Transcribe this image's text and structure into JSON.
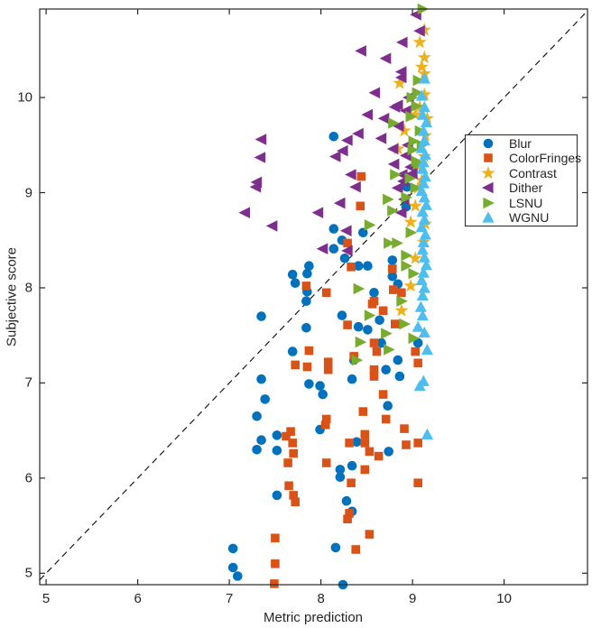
{
  "chart_data": {
    "type": "scatter",
    "title": "",
    "xlabel": "Metric prediction",
    "ylabel": "Subjective score",
    "xlim": [
      4.93,
      10.91
    ],
    "ylim": [
      4.88,
      10.93
    ],
    "xticks": [
      "5",
      "6",
      "7",
      "8",
      "9",
      "10"
    ],
    "xtick_values": [
      5,
      6,
      7,
      8,
      9,
      10
    ],
    "yticks": [
      "5",
      "6",
      "7",
      "8",
      "9",
      "10"
    ],
    "ytick_values": [
      5,
      6,
      7,
      8,
      9,
      10
    ],
    "grid": false,
    "box": true,
    "axis_color": "#262626",
    "legend_position": "upper-right-inside",
    "reference_line": {
      "description": "identity line y = x",
      "style": "dashed",
      "color": "#1a1a1a",
      "from": [
        4.93,
        4.93
      ],
      "to": [
        10.91,
        10.91
      ]
    },
    "series": [
      {
        "name": "Blur",
        "marker": "circle",
        "color": "#0072BD",
        "points": [
          [
            8.14,
            9.59
          ],
          [
            8.94,
            9.06
          ],
          [
            8.93,
            8.85
          ],
          [
            8.46,
            8.58
          ],
          [
            8.23,
            8.5
          ],
          [
            8.26,
            8.31
          ],
          [
            8.41,
            8.23
          ],
          [
            8.51,
            8.23
          ],
          [
            8.78,
            8.29
          ],
          [
            8.84,
            8.04
          ],
          [
            8.58,
            7.95
          ],
          [
            8.78,
            8.12
          ],
          [
            8.14,
            8.62
          ],
          [
            8.14,
            8.41
          ],
          [
            7.87,
            8.23
          ],
          [
            7.85,
            8.15
          ],
          [
            7.69,
            8.14
          ],
          [
            7.72,
            8.05
          ],
          [
            7.85,
            7.96
          ],
          [
            7.84,
            7.86
          ],
          [
            7.35,
            7.7
          ],
          [
            7.84,
            7.58
          ],
          [
            7.69,
            7.33
          ],
          [
            7.35,
            7.04
          ],
          [
            7.87,
            6.99
          ],
          [
            7.99,
            6.97
          ],
          [
            8.02,
            6.88
          ],
          [
            7.39,
            6.83
          ],
          [
            7.3,
            6.65
          ],
          [
            8.23,
            7.71
          ],
          [
            8.41,
            7.59
          ],
          [
            8.51,
            7.56
          ],
          [
            8.64,
            7.66
          ],
          [
            8.66,
            7.42
          ],
          [
            8.36,
            7.24
          ],
          [
            8.84,
            7.24
          ],
          [
            8.71,
            7.14
          ],
          [
            8.86,
            7.07
          ],
          [
            8.34,
            7.04
          ],
          [
            8.73,
            6.76
          ],
          [
            9.06,
            7.42
          ],
          [
            7.35,
            6.4
          ],
          [
            7.3,
            6.3
          ],
          [
            7.52,
            6.45
          ],
          [
            7.52,
            6.29
          ],
          [
            7.99,
            6.51
          ],
          [
            7.52,
            5.82
          ],
          [
            8.39,
            6.38
          ],
          [
            8.74,
            6.28
          ],
          [
            8.21,
            6.09
          ],
          [
            8.34,
            6.13
          ],
          [
            8.21,
            6.01
          ],
          [
            8.28,
            5.76
          ],
          [
            8.34,
            5.65
          ],
          [
            7.04,
            5.26
          ],
          [
            7.04,
            5.06
          ],
          [
            7.09,
            4.97
          ],
          [
            8.16,
            5.27
          ],
          [
            8.24,
            4.88
          ]
        ]
      },
      {
        "name": "ColorFringes",
        "marker": "square",
        "color": "#D95319",
        "points": [
          [
            8.44,
            9.17
          ],
          [
            8.43,
            8.86
          ],
          [
            8.29,
            8.47
          ],
          [
            8.33,
            8.22
          ],
          [
            8.78,
            8.2
          ],
          [
            8.79,
            7.98
          ],
          [
            8.88,
            7.95
          ],
          [
            8.58,
            7.86
          ],
          [
            7.84,
            8.02
          ],
          [
            8.06,
            7.95
          ],
          [
            7.87,
            7.34
          ],
          [
            7.72,
            7.19
          ],
          [
            7.85,
            7.17
          ],
          [
            8.08,
            7.22
          ],
          [
            8.08,
            7.14
          ],
          [
            8.06,
            6.62
          ],
          [
            8.56,
            7.83
          ],
          [
            8.68,
            7.76
          ],
          [
            8.29,
            7.61
          ],
          [
            8.81,
            7.62
          ],
          [
            8.58,
            7.42
          ],
          [
            8.61,
            7.33
          ],
          [
            8.36,
            7.28
          ],
          [
            8.58,
            7.14
          ],
          [
            8.58,
            7.07
          ],
          [
            8.68,
            6.88
          ],
          [
            8.46,
            6.7
          ],
          [
            8.71,
            6.62
          ],
          [
            9.03,
            7.33
          ],
          [
            9.06,
            7.21
          ],
          [
            7.67,
            6.49
          ],
          [
            7.62,
            6.44
          ],
          [
            7.69,
            6.37
          ],
          [
            7.7,
            6.26
          ],
          [
            7.64,
            6.16
          ],
          [
            8.06,
            6.16
          ],
          [
            7.65,
            5.92
          ],
          [
            7.7,
            5.82
          ],
          [
            7.72,
            5.75
          ],
          [
            7.5,
            5.37
          ],
          [
            8.05,
            6.56
          ],
          [
            8.48,
            6.46
          ],
          [
            8.91,
            6.52
          ],
          [
            8.31,
            6.37
          ],
          [
            8.48,
            6.37
          ],
          [
            8.53,
            6.28
          ],
          [
            8.63,
            6.23
          ],
          [
            8.93,
            6.35
          ],
          [
            9.06,
            6.37
          ],
          [
            8.48,
            6.09
          ],
          [
            8.33,
            5.95
          ],
          [
            9.06,
            5.95
          ],
          [
            8.29,
            5.57
          ],
          [
            8.53,
            5.41
          ],
          [
            7.5,
            5.1
          ],
          [
            7.49,
            4.89
          ],
          [
            8.31,
            5.63
          ],
          [
            8.38,
            5.25
          ]
        ]
      },
      {
        "name": "Contrast",
        "marker": "pentagram",
        "color": "#EDB120",
        "points": [
          [
            9.13,
            10.71
          ],
          [
            9.08,
            10.58
          ],
          [
            9.13,
            10.42
          ],
          [
            8.86,
            10.15
          ],
          [
            9.13,
            10.25
          ],
          [
            9.13,
            10.03
          ],
          [
            9.03,
            9.82
          ],
          [
            9.16,
            9.78
          ],
          [
            8.91,
            9.65
          ],
          [
            8.84,
            9.46
          ],
          [
            9.13,
            9.38
          ],
          [
            9.08,
            9.9
          ],
          [
            9.14,
            9.6
          ],
          [
            9.05,
            9.28
          ],
          [
            9.1,
            9.13
          ],
          [
            9.03,
            8.86
          ],
          [
            8.98,
            8.69
          ],
          [
            9.14,
            8.67
          ],
          [
            9.03,
            8.31
          ],
          [
            8.98,
            8.02
          ],
          [
            8.88,
            7.76
          ],
          [
            9.1,
            10.32
          ],
          [
            9.06,
            9.05
          ],
          [
            9.12,
            8.48
          ]
        ]
      },
      {
        "name": "Dither",
        "marker": "triangle-left",
        "color": "#7E2F8E",
        "points": [
          [
            7.35,
            9.56
          ],
          [
            7.34,
            9.37
          ],
          [
            7.3,
            9.11
          ],
          [
            7.29,
            9.06
          ],
          [
            7.17,
            8.79
          ],
          [
            7.47,
            8.65
          ],
          [
            7.97,
            8.79
          ],
          [
            8.02,
            8.41
          ],
          [
            8.21,
            8.89
          ],
          [
            8.38,
            9.06
          ],
          [
            8.84,
            9.05
          ],
          [
            8.91,
            8.93
          ],
          [
            8.88,
            8.79
          ],
          [
            8.28,
            8.6
          ],
          [
            8.29,
            8.39
          ],
          [
            8.44,
            10.49
          ],
          [
            9.04,
            10.87
          ],
          [
            9.08,
            10.7
          ],
          [
            8.89,
            10.58
          ],
          [
            8.71,
            10.41
          ],
          [
            8.88,
            10.21
          ],
          [
            8.59,
            10.05
          ],
          [
            8.88,
            10.27
          ],
          [
            8.96,
            10.0
          ],
          [
            8.84,
            9.92
          ],
          [
            8.51,
            9.82
          ],
          [
            8.69,
            9.78
          ],
          [
            8.93,
            9.86
          ],
          [
            8.41,
            9.62
          ],
          [
            8.29,
            9.55
          ],
          [
            8.66,
            9.57
          ],
          [
            8.24,
            9.44
          ],
          [
            8.16,
            9.38
          ],
          [
            8.79,
            9.46
          ],
          [
            8.93,
            9.39
          ],
          [
            8.98,
            9.27
          ],
          [
            8.89,
            9.19
          ],
          [
            8.33,
            9.19
          ],
          [
            8.81,
            9.9
          ],
          [
            8.85,
            9.7
          ],
          [
            8.95,
            9.5
          ],
          [
            8.8,
            9.3
          ],
          [
            8.9,
            9.12
          ],
          [
            9.0,
            9.2
          ]
        ]
      },
      {
        "name": "LSNU",
        "marker": "triangle-right",
        "color": "#77AC30",
        "points": [
          [
            9.11,
            10.93
          ],
          [
            9.06,
            10.18
          ],
          [
            8.99,
            10.0
          ],
          [
            8.79,
            9.73
          ],
          [
            9.04,
            9.91
          ],
          [
            9.01,
            9.54
          ],
          [
            9.04,
            9.33
          ],
          [
            8.81,
            9.19
          ],
          [
            8.73,
            8.93
          ],
          [
            8.93,
            8.95
          ],
          [
            8.78,
            8.81
          ],
          [
            8.53,
            8.66
          ],
          [
            8.98,
            8.58
          ],
          [
            8.74,
            8.47
          ],
          [
            8.83,
            8.47
          ],
          [
            8.93,
            8.34
          ],
          [
            8.93,
            8.23
          ],
          [
            9.01,
            8.15
          ],
          [
            8.41,
            7.99
          ],
          [
            8.88,
            7.86
          ],
          [
            8.53,
            7.71
          ],
          [
            8.91,
            7.62
          ],
          [
            8.71,
            7.52
          ],
          [
            8.74,
            7.35
          ],
          [
            8.43,
            7.43
          ],
          [
            8.39,
            7.24
          ],
          [
            9.01,
            7.47
          ],
          [
            9.05,
            10.05
          ],
          [
            8.98,
            9.8
          ],
          [
            9.08,
            9.65
          ],
          [
            9.0,
            9.45
          ],
          [
            9.06,
            9.3
          ],
          [
            8.97,
            9.15
          ],
          [
            9.03,
            9.05
          ],
          [
            9.1,
            9.5
          ]
        ]
      },
      {
        "name": "WGNU",
        "marker": "triangle-up",
        "color": "#4DBEEE",
        "points": [
          [
            9.13,
            10.2
          ],
          [
            9.1,
            10.02
          ],
          [
            9.13,
            9.9
          ],
          [
            9.11,
            9.82
          ],
          [
            9.15,
            9.74
          ],
          [
            9.12,
            9.65
          ],
          [
            9.13,
            9.55
          ],
          [
            9.1,
            9.47
          ],
          [
            9.14,
            9.4
          ],
          [
            9.12,
            9.32
          ],
          [
            9.11,
            9.25
          ],
          [
            9.14,
            9.17
          ],
          [
            9.12,
            9.1
          ],
          [
            9.1,
            9.02
          ],
          [
            9.13,
            8.95
          ],
          [
            9.15,
            8.87
          ],
          [
            9.11,
            8.8
          ],
          [
            9.13,
            8.72
          ],
          [
            9.1,
            8.64
          ],
          [
            9.14,
            8.56
          ],
          [
            9.12,
            8.48
          ],
          [
            9.11,
            8.4
          ],
          [
            9.13,
            8.32
          ],
          [
            9.15,
            8.24
          ],
          [
            9.12,
            8.16
          ],
          [
            9.1,
            8.08
          ],
          [
            9.13,
            8.0
          ],
          [
            9.11,
            7.92
          ],
          [
            9.09,
            7.8
          ],
          [
            9.11,
            7.71
          ],
          [
            9.06,
            7.59
          ],
          [
            9.13,
            7.53
          ],
          [
            9.16,
            7.35
          ],
          [
            9.12,
            7.02
          ],
          [
            9.08,
            6.97
          ],
          [
            9.16,
            6.46
          ]
        ]
      }
    ]
  }
}
